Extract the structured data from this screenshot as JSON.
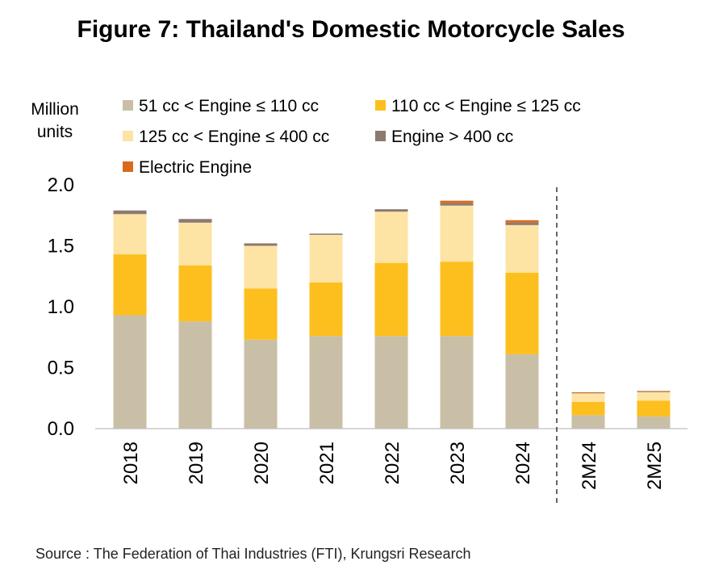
{
  "title": "Figure 7: Thailand's Domestic Motorcycle Sales",
  "source": "Source : The Federation of Thai Industries (FTI), Krungsri Research",
  "chart_data": {
    "type": "bar",
    "stacked": true,
    "ylabel": "Million units",
    "ylim": [
      0,
      2.0
    ],
    "yticks": [
      "0.0",
      "0.5",
      "1.0",
      "1.5",
      "2.0"
    ],
    "categories": [
      "2018",
      "2019",
      "2020",
      "2021",
      "2022",
      "2023",
      "2024",
      "2M24",
      "2M25"
    ],
    "divider_after_category": "2024",
    "legend_position": "top",
    "series": [
      {
        "name": "51 cc < Engine ≤ 110 cc",
        "color": "#c8bfa6",
        "values": [
          0.93,
          0.88,
          0.73,
          0.76,
          0.76,
          0.76,
          0.61,
          0.11,
          0.1
        ]
      },
      {
        "name": "110 cc < Engine ≤ 125 cc",
        "color": "#fdbf1e",
        "values": [
          0.5,
          0.46,
          0.42,
          0.44,
          0.6,
          0.61,
          0.67,
          0.11,
          0.13
        ]
      },
      {
        "name": "125 cc < Engine ≤ 400 cc",
        "color": "#fde4a4",
        "values": [
          0.33,
          0.35,
          0.35,
          0.39,
          0.42,
          0.46,
          0.39,
          0.07,
          0.07
        ]
      },
      {
        "name": "Engine > 400 cc",
        "color": "#8c7a70",
        "values": [
          0.03,
          0.03,
          0.02,
          0.01,
          0.02,
          0.02,
          0.02,
          0.005,
          0.005
        ]
      },
      {
        "name": "Electric Engine",
        "color": "#d86a1e",
        "values": [
          0.0,
          0.0,
          0.0,
          0.0,
          0.0,
          0.02,
          0.02,
          0.003,
          0.004
        ]
      }
    ]
  }
}
